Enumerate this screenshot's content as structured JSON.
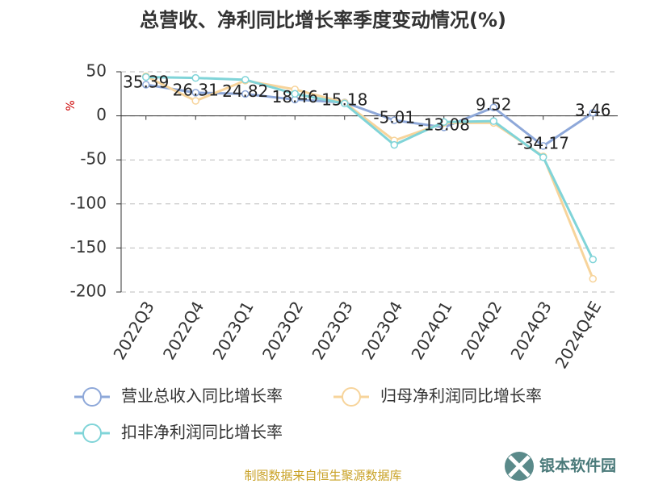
{
  "chart_data": {
    "type": "line",
    "title": "总营收、净利同比增长率季度变动情况(%)",
    "y_label": "%",
    "categories": [
      "2022Q3",
      "2022Q4",
      "2023Q1",
      "2023Q2",
      "2023Q3",
      "2023Q4",
      "2024Q1",
      "2024Q2",
      "2024Q3",
      "2024Q4E"
    ],
    "series": [
      {
        "name": "营业总收入同比增长率",
        "color": "#8ea8d9",
        "values": [
          35.39,
          26.31,
          24.82,
          18.46,
          15.18,
          -5.01,
          -13.08,
          9.52,
          -34.17,
          3.46
        ],
        "data_labels": true
      },
      {
        "name": "归母净利润同比增长率",
        "color": "#f7d49b",
        "values": [
          45,
          17,
          40,
          30,
          15,
          -28,
          -8,
          -8,
          -46,
          -185
        ]
      },
      {
        "name": "扣非净利润同比增长率",
        "color": "#80d4d8",
        "values": [
          44,
          43,
          41,
          25,
          14,
          -33,
          -7,
          -6,
          -47,
          -163
        ]
      }
    ],
    "ylim": [
      -200,
      50
    ],
    "yticks": [
      50,
      0,
      -50,
      -100,
      -150,
      -200
    ],
    "grid": true,
    "source": "制图数据来自恒生聚源数据库",
    "watermark": "银本软件园"
  }
}
